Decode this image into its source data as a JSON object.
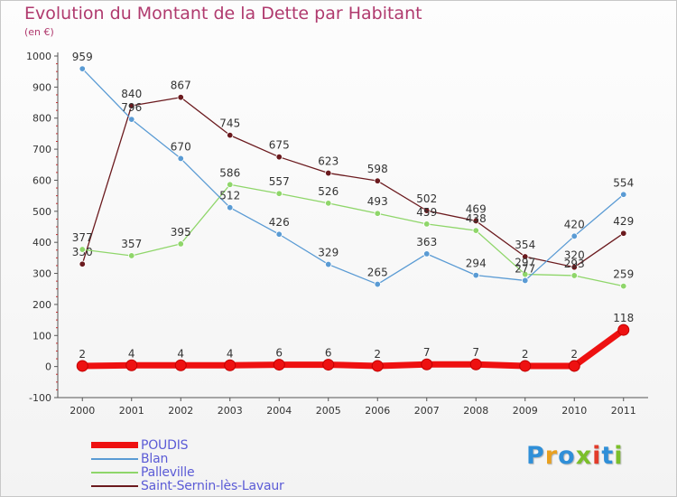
{
  "title": "Evolution du Montant de la Dette par Habitant",
  "subtitle": "(en €)",
  "logo": {
    "text": "Proxiti",
    "letter_colors": [
      "#2f8fd8",
      "#e8a020",
      "#2f8fd8",
      "#7bbf2a",
      "#e23b2a",
      "#2f8fd8",
      "#7bbf2a"
    ]
  },
  "chart_data": {
    "type": "line",
    "x": [
      "2000",
      "2001",
      "2002",
      "2003",
      "2004",
      "2005",
      "2006",
      "2007",
      "2008",
      "2009",
      "2010",
      "2011"
    ],
    "ylim": [
      -100,
      1000
    ],
    "yticks": [
      "-100",
      "0",
      "100",
      "200",
      "300",
      "400",
      "500",
      "600",
      "700",
      "800",
      "900",
      "1000"
    ],
    "grid": false,
    "legend_position": "bottom-left",
    "series": [
      {
        "name": "Saint-Sernin-lès-Lavaur",
        "color": "#6b1a1e",
        "values": [
          330,
          840,
          867,
          745,
          675,
          623,
          598,
          502,
          469,
          354,
          320,
          429
        ],
        "labels": [
          "330",
          "840",
          "867",
          "745",
          "675",
          "623",
          "598",
          "502",
          "469",
          "354",
          "320",
          "429"
        ]
      },
      {
        "name": "Palleville",
        "color": "#8fd66a",
        "values": [
          377,
          357,
          395,
          586,
          557,
          526,
          493,
          459,
          438,
          297,
          293,
          259
        ],
        "labels": [
          "377",
          "357",
          "395",
          "586",
          "557",
          "526",
          "493",
          "459",
          "438",
          "297",
          "293",
          "259"
        ]
      },
      {
        "name": "Blan",
        "color": "#5a9bd4",
        "values": [
          959,
          796,
          670,
          512,
          426,
          329,
          265,
          363,
          294,
          277,
          420,
          554
        ],
        "labels": [
          "959",
          "796",
          "670",
          "512",
          "426",
          "329",
          "265",
          "363",
          "294",
          "277",
          "420",
          "554"
        ]
      },
      {
        "name": "POUDIS",
        "color": "#ee1111",
        "values": [
          2,
          4,
          4,
          4,
          6,
          6,
          2,
          7,
          7,
          2,
          2,
          118
        ],
        "labels": [
          "2",
          "4",
          "4",
          "4",
          "6",
          "6",
          "2",
          "7",
          "7",
          "2",
          "2",
          "118"
        ]
      }
    ],
    "legend_order": [
      "POUDIS",
      "Blan",
      "Palleville",
      "Saint-Sernin-lès-Lavaur"
    ]
  }
}
